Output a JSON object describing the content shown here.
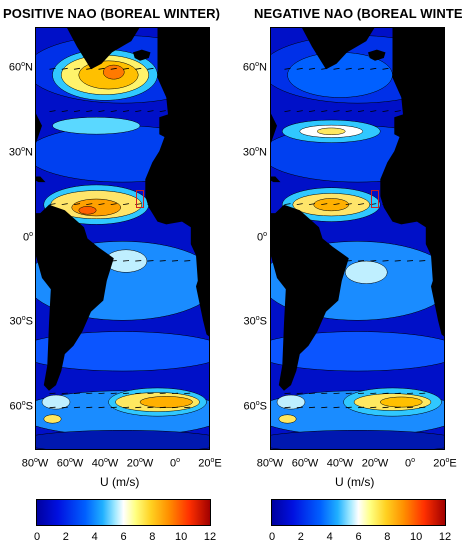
{
  "panels": [
    {
      "title": "POSITIVE NAO (BOREAL WINTER)",
      "variant": "positive",
      "lat_labels": [
        {
          "deg": "60",
          "hemi": "N",
          "lat": 60
        },
        {
          "deg": "30",
          "hemi": "N",
          "lat": 30
        },
        {
          "deg": "0",
          "hemi": "",
          "lat": 0
        },
        {
          "deg": "30",
          "hemi": "S",
          "lat": -30
        },
        {
          "deg": "60",
          "hemi": "S",
          "lat": -60
        }
      ],
      "lon_labels": [
        {
          "deg": "80",
          "hemi": "W",
          "lon": -80
        },
        {
          "deg": "60",
          "hemi": "W",
          "lon": -60
        },
        {
          "deg": "40",
          "hemi": "W",
          "lon": -40
        },
        {
          "deg": "20",
          "hemi": "W",
          "lon": -20
        },
        {
          "deg": "0",
          "hemi": "",
          "lon": 0
        },
        {
          "deg": "20",
          "hemi": "E",
          "lon": 20
        }
      ],
      "xlabel": "U (m/s)",
      "colorbar_ticks": [
        "0",
        "2",
        "4",
        "6",
        "8",
        "10",
        "12"
      ]
    },
    {
      "title": "NEGATIVE NAO (BOREAL WINTER)",
      "variant": "negative",
      "lat_labels": [
        {
          "deg": "60",
          "hemi": "N",
          "lat": 60
        },
        {
          "deg": "30",
          "hemi": "N",
          "lat": 30
        },
        {
          "deg": "0",
          "hemi": "",
          "lat": 0
        },
        {
          "deg": "30",
          "hemi": "S",
          "lat": -30
        },
        {
          "deg": "60",
          "hemi": "S",
          "lat": -60
        }
      ],
      "lon_labels": [
        {
          "deg": "80",
          "hemi": "W",
          "lon": -80
        },
        {
          "deg": "60",
          "hemi": "W",
          "lon": -60
        },
        {
          "deg": "40",
          "hemi": "W",
          "lon": -40
        },
        {
          "deg": "20",
          "hemi": "W",
          "lon": -20
        },
        {
          "deg": "0",
          "hemi": "",
          "lon": 0
        },
        {
          "deg": "20",
          "hemi": "E",
          "lon": 20
        }
      ],
      "xlabel": "U (m/s)",
      "colorbar_ticks": [
        "0",
        "2",
        "4",
        "6",
        "8",
        "10",
        "12"
      ]
    }
  ],
  "map_extent": {
    "lon": [
      -80,
      20
    ],
    "lat": [
      -75,
      75
    ]
  },
  "colorbar_range": [
    0,
    12
  ],
  "colors": {
    "land": "#000000",
    "ocean_low": "#0010c8",
    "ocean_mid": "#1e90ff",
    "ocean_hi": "#ffe000",
    "ocean_max": "#ff8000",
    "box": "#d02020"
  }
}
